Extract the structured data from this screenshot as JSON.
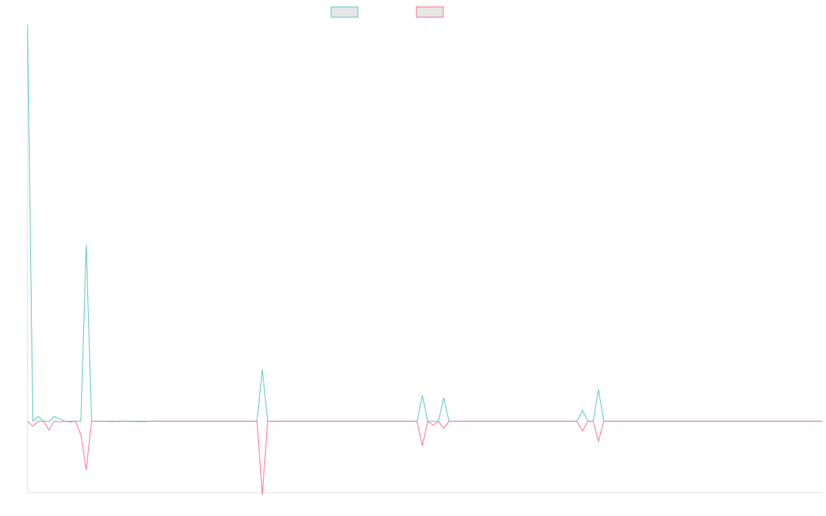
{
  "chart_data": {
    "type": "line",
    "title": "",
    "xlabel": "",
    "ylabel": "",
    "x_count": 150,
    "ylim": [
      -0.18,
      1.0
    ],
    "grid": false,
    "legend_position": "top-center",
    "series": [
      {
        "color": "#4bc0c0",
        "fill": "#e6e6e6",
        "points": [
          [
            0,
            1.0
          ],
          [
            1,
            0.0
          ],
          [
            2,
            0.012
          ],
          [
            3,
            0.0
          ],
          [
            4,
            0.0
          ],
          [
            5,
            0.012
          ],
          [
            6,
            0.006
          ],
          [
            7,
            0.0
          ],
          [
            8,
            0.0
          ],
          [
            9,
            0.0
          ],
          [
            10,
            0.0
          ],
          [
            11,
            0.445
          ],
          [
            12,
            0.0
          ],
          [
            13,
            0.0
          ],
          [
            20,
            0.0
          ],
          [
            43,
            0.0
          ],
          [
            44,
            0.13
          ],
          [
            45,
            0.0
          ],
          [
            73,
            0.0
          ],
          [
            74,
            0.065
          ],
          [
            75,
            0.0
          ],
          [
            76,
            0.0
          ],
          [
            77,
            0.0
          ],
          [
            78,
            0.059
          ],
          [
            79,
            0.0
          ],
          [
            103,
            0.0
          ],
          [
            104,
            0.028
          ],
          [
            105,
            0.0
          ],
          [
            106,
            0.0
          ],
          [
            107,
            0.08
          ],
          [
            108,
            0.0
          ],
          [
            149,
            0.0
          ]
        ]
      },
      {
        "color": "#ff6384",
        "fill": "#e6e6e6",
        "points": [
          [
            0,
            0.0
          ],
          [
            1,
            -0.012
          ],
          [
            2,
            0.0
          ],
          [
            3,
            0.0
          ],
          [
            4,
            -0.022
          ],
          [
            5,
            0.0
          ],
          [
            6,
            -0.002
          ],
          [
            7,
            0.0
          ],
          [
            8,
            -0.002
          ],
          [
            9,
            0.0
          ],
          [
            10,
            -0.035
          ],
          [
            11,
            -0.122
          ],
          [
            12,
            0.0
          ],
          [
            13,
            0.0
          ],
          [
            16,
            -0.001
          ],
          [
            17,
            0.0
          ],
          [
            22,
            -0.001
          ],
          [
            23,
            0.0
          ],
          [
            43,
            0.0
          ],
          [
            44,
            -0.185
          ],
          [
            45,
            0.0
          ],
          [
            73,
            0.0
          ],
          [
            74,
            -0.062
          ],
          [
            75,
            0.0
          ],
          [
            76,
            -0.01
          ],
          [
            77,
            0.0
          ],
          [
            78,
            -0.018
          ],
          [
            79,
            0.0
          ],
          [
            103,
            0.0
          ],
          [
            104,
            -0.025
          ],
          [
            105,
            0.0
          ],
          [
            106,
            0.0
          ],
          [
            107,
            -0.05
          ],
          [
            108,
            0.0
          ],
          [
            149,
            0.0
          ]
        ]
      }
    ]
  }
}
